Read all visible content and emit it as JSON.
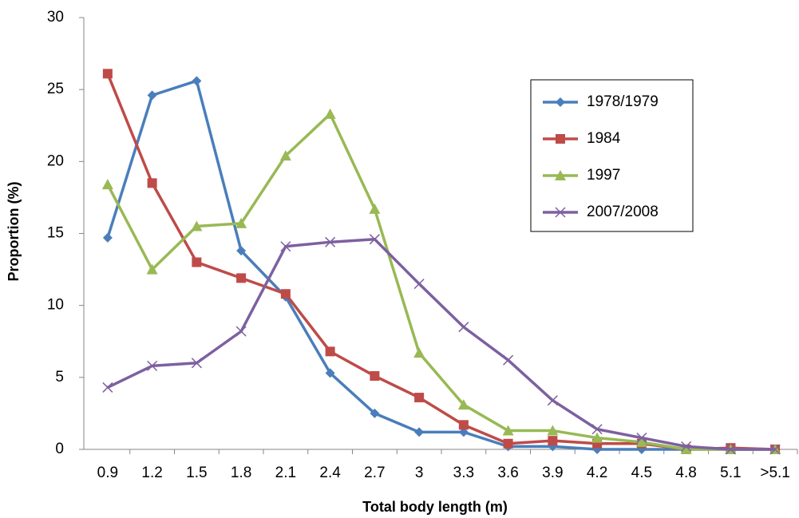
{
  "chart_data": {
    "type": "line",
    "x_label": "Total body length (m)",
    "y_label": "Proportion (%)",
    "categories": [
      "0.9",
      "1.2",
      "1.5",
      "1.8",
      "2.1",
      "2.4",
      "2.7",
      "3",
      "3.3",
      "3.6",
      "3.9",
      "4.2",
      "4.5",
      "4.8",
      "5.1",
      ">5.1"
    ],
    "series": [
      {
        "name": "1978/1979",
        "color": "#4a7ebb",
        "marker": "diamond",
        "values": [
          14.7,
          24.6,
          25.6,
          13.8,
          10.6,
          5.3,
          2.5,
          1.2,
          1.2,
          0.2,
          0.2,
          0.0,
          0.0,
          0.0,
          0.0,
          0.0
        ]
      },
      {
        "name": "1984",
        "color": "#be4b48",
        "marker": "square",
        "values": [
          26.1,
          18.5,
          13.0,
          11.9,
          10.8,
          6.8,
          5.1,
          3.6,
          1.7,
          0.4,
          0.6,
          0.4,
          0.4,
          0.0,
          0.1,
          0.0
        ]
      },
      {
        "name": "1997",
        "color": "#98b954",
        "marker": "triangle",
        "values": [
          18.4,
          12.5,
          15.5,
          15.7,
          20.4,
          23.3,
          16.7,
          6.7,
          3.1,
          1.3,
          1.3,
          0.8,
          0.5,
          0.0,
          0.0,
          0.0
        ]
      },
      {
        "name": "2007/2008",
        "color": "#7d60a0",
        "marker": "x",
        "values": [
          4.3,
          5.8,
          6.0,
          8.2,
          14.1,
          14.4,
          14.6,
          11.5,
          8.5,
          6.2,
          3.4,
          1.4,
          0.8,
          0.2,
          0.0,
          0.0
        ]
      }
    ],
    "ylim": [
      0,
      30
    ],
    "yticks": [
      0,
      5,
      10,
      15,
      20,
      25,
      30
    ],
    "grid": false
  }
}
